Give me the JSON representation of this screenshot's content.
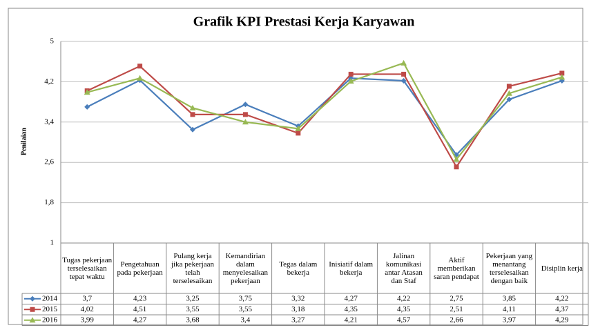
{
  "chart_data": {
    "type": "line",
    "title": "Grafik KPI Prestasi Kerja Karyawan",
    "y_label": "Penilaian",
    "categories": [
      "Tugas pekerjaan terselesaikan tepat waktu",
      "Pengetahuan pada pekerjaan",
      "Pulang kerja jika pekerjaan telah terselesaikan",
      "Kemandirian dalam menyelesaikan pekerjaan",
      "Tegas dalam bekerja",
      "Inisiatif dalam bekerja",
      "Jalinan komunikasi antar Atasan dan Staf",
      "Aktif memberikan saran pendapat",
      "Pekerjaan yang menantang terselesaikan dengan baik",
      "Disiplin kerja"
    ],
    "series": [
      {
        "name": "2014",
        "color": "#4a7ebb",
        "marker": "diamond",
        "values": [
          3.7,
          4.23,
          3.25,
          3.75,
          3.32,
          4.27,
          4.22,
          2.75,
          3.85,
          4.22
        ],
        "value_labels": [
          "3,7",
          "4,23",
          "3,25",
          "3,75",
          "3,32",
          "4,27",
          "4,22",
          "2,75",
          "3,85",
          "4,22"
        ]
      },
      {
        "name": "2015",
        "color": "#be4b48",
        "marker": "square",
        "values": [
          4.02,
          4.51,
          3.55,
          3.55,
          3.18,
          4.35,
          4.35,
          2.51,
          4.11,
          4.37
        ],
        "value_labels": [
          "4,02",
          "4,51",
          "3,55",
          "3,55",
          "3,18",
          "4,35",
          "4,35",
          "2,51",
          "4,11",
          "4,37"
        ]
      },
      {
        "name": "2016",
        "color": "#98b954",
        "marker": "triangle",
        "values": [
          3.99,
          4.27,
          3.68,
          3.4,
          3.27,
          4.21,
          4.57,
          2.66,
          3.97,
          4.29
        ],
        "value_labels": [
          "3,99",
          "4,27",
          "3,68",
          "3,4",
          "3,27",
          "4,21",
          "4,57",
          "2,66",
          "3,97",
          "4,29"
        ]
      }
    ],
    "ylim": [
      1,
      5
    ],
    "yticks": [
      1,
      {
        "value": 1.8,
        "label": "1,8"
      },
      {
        "value": 2.6,
        "label": "2,6"
      },
      {
        "value": 3.4,
        "label": "3,4"
      },
      {
        "value": 4.2,
        "label": "4,2"
      },
      5
    ],
    "grid": true
  }
}
